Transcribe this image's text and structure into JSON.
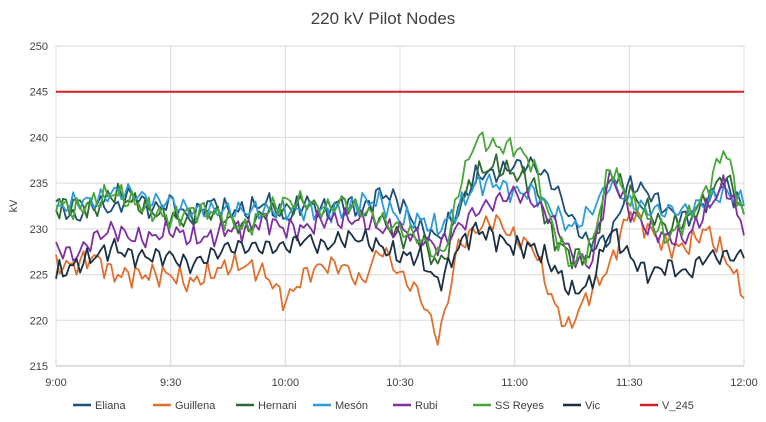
{
  "chart_data": {
    "type": "line",
    "title": "220 kV Pilot Nodes",
    "xlabel": "",
    "ylabel": "kV",
    "x_ticks": [
      "9:00",
      "9:30",
      "10:00",
      "10:30",
      "11:00",
      "11:30",
      "12:00"
    ],
    "xlim_minutes": [
      0,
      180
    ],
    "y_ticks": [
      215,
      220,
      225,
      230,
      235,
      240,
      245,
      250
    ],
    "ylim": [
      215,
      250
    ],
    "grid": true,
    "legend_position": "bottom",
    "series": [
      {
        "name": "Eliana",
        "color": "#1f4e79",
        "points": [
          [
            0,
            233
          ],
          [
            5,
            231
          ],
          [
            10,
            233
          ],
          [
            15,
            232
          ],
          [
            20,
            234
          ],
          [
            25,
            232
          ],
          [
            30,
            233
          ],
          [
            35,
            231
          ],
          [
            40,
            233
          ],
          [
            45,
            232
          ],
          [
            50,
            232
          ],
          [
            55,
            233
          ],
          [
            60,
            231
          ],
          [
            65,
            233
          ],
          [
            70,
            232
          ],
          [
            75,
            233
          ],
          [
            80,
            232
          ],
          [
            85,
            234
          ],
          [
            90,
            233
          ],
          [
            95,
            230
          ],
          [
            100,
            229
          ],
          [
            105,
            232
          ],
          [
            110,
            236
          ],
          [
            115,
            236
          ],
          [
            120,
            237
          ],
          [
            125,
            237
          ],
          [
            130,
            235
          ],
          [
            135,
            231
          ],
          [
            140,
            228
          ],
          [
            145,
            229
          ],
          [
            150,
            235
          ],
          [
            155,
            234
          ],
          [
            160,
            232
          ],
          [
            165,
            231
          ],
          [
            170,
            233
          ],
          [
            175,
            235
          ],
          [
            180,
            232
          ]
        ]
      },
      {
        "name": "Guillena",
        "color": "#e0702f",
        "points": [
          [
            0,
            226
          ],
          [
            5,
            226
          ],
          [
            10,
            227
          ],
          [
            15,
            225
          ],
          [
            20,
            225
          ],
          [
            25,
            225
          ],
          [
            30,
            225
          ],
          [
            35,
            224
          ],
          [
            40,
            225
          ],
          [
            45,
            226
          ],
          [
            50,
            226
          ],
          [
            55,
            225
          ],
          [
            60,
            222
          ],
          [
            65,
            225
          ],
          [
            70,
            226
          ],
          [
            75,
            226
          ],
          [
            80,
            224
          ],
          [
            85,
            228
          ],
          [
            90,
            225
          ],
          [
            95,
            223
          ],
          [
            100,
            218
          ],
          [
            102,
            221
          ],
          [
            105,
            228
          ],
          [
            110,
            230
          ],
          [
            115,
            231
          ],
          [
            120,
            229
          ],
          [
            125,
            228
          ],
          [
            130,
            222
          ],
          [
            134,
            219
          ],
          [
            138,
            222
          ],
          [
            145,
            226
          ],
          [
            150,
            232
          ],
          [
            155,
            230
          ],
          [
            160,
            228
          ],
          [
            165,
            228
          ],
          [
            170,
            230
          ],
          [
            175,
            227
          ],
          [
            180,
            223
          ]
        ]
      },
      {
        "name": "Hernani",
        "color": "#2e6b2e",
        "points": [
          [
            0,
            232
          ],
          [
            5,
            233
          ],
          [
            10,
            232
          ],
          [
            15,
            234
          ],
          [
            20,
            233
          ],
          [
            25,
            232
          ],
          [
            30,
            231
          ],
          [
            35,
            231
          ],
          [
            40,
            232
          ],
          [
            45,
            231
          ],
          [
            50,
            230
          ],
          [
            55,
            232
          ],
          [
            60,
            232
          ],
          [
            65,
            233
          ],
          [
            70,
            232
          ],
          [
            75,
            233
          ],
          [
            80,
            232
          ],
          [
            85,
            231
          ],
          [
            90,
            229
          ],
          [
            95,
            229
          ],
          [
            100,
            226
          ],
          [
            103,
            228
          ],
          [
            105,
            232
          ],
          [
            110,
            236
          ],
          [
            115,
            237
          ],
          [
            120,
            236
          ],
          [
            125,
            235
          ],
          [
            130,
            229
          ],
          [
            135,
            227
          ],
          [
            140,
            227
          ],
          [
            145,
            236
          ],
          [
            150,
            234
          ],
          [
            155,
            232
          ],
          [
            160,
            230
          ],
          [
            165,
            231
          ],
          [
            170,
            233
          ],
          [
            175,
            236
          ],
          [
            180,
            232
          ]
        ]
      },
      {
        "name": "Mesón",
        "color": "#2e9cd9",
        "points": [
          [
            0,
            232
          ],
          [
            5,
            233
          ],
          [
            10,
            233
          ],
          [
            15,
            234
          ],
          [
            20,
            234
          ],
          [
            25,
            233
          ],
          [
            30,
            233
          ],
          [
            35,
            232
          ],
          [
            40,
            232
          ],
          [
            45,
            232
          ],
          [
            50,
            232
          ],
          [
            55,
            232
          ],
          [
            60,
            232
          ],
          [
            65,
            232
          ],
          [
            70,
            232
          ],
          [
            75,
            232
          ],
          [
            80,
            233
          ],
          [
            85,
            233
          ],
          [
            90,
            231
          ],
          [
            95,
            231
          ],
          [
            100,
            230
          ],
          [
            105,
            232
          ],
          [
            110,
            235
          ],
          [
            115,
            235
          ],
          [
            120,
            234
          ],
          [
            125,
            234
          ],
          [
            130,
            232
          ],
          [
            135,
            230
          ],
          [
            140,
            232
          ],
          [
            145,
            235
          ],
          [
            150,
            233
          ],
          [
            155,
            232
          ],
          [
            160,
            232
          ],
          [
            165,
            232
          ],
          [
            170,
            233
          ],
          [
            175,
            234
          ],
          [
            180,
            233
          ]
        ]
      },
      {
        "name": "Rubi",
        "color": "#7f2fa0",
        "points": [
          [
            0,
            228
          ],
          [
            5,
            227
          ],
          [
            10,
            229
          ],
          [
            15,
            230
          ],
          [
            20,
            229
          ],
          [
            25,
            229
          ],
          [
            30,
            230
          ],
          [
            35,
            229
          ],
          [
            40,
            229
          ],
          [
            45,
            230
          ],
          [
            50,
            230
          ],
          [
            55,
            231
          ],
          [
            60,
            230
          ],
          [
            65,
            230
          ],
          [
            70,
            231
          ],
          [
            75,
            231
          ],
          [
            80,
            231
          ],
          [
            85,
            230
          ],
          [
            90,
            230
          ],
          [
            95,
            229
          ],
          [
            100,
            228
          ],
          [
            105,
            230
          ],
          [
            110,
            232
          ],
          [
            115,
            233
          ],
          [
            120,
            234
          ],
          [
            125,
            233
          ],
          [
            130,
            231
          ],
          [
            135,
            227
          ],
          [
            140,
            226
          ],
          [
            145,
            236
          ],
          [
            150,
            232
          ],
          [
            155,
            230
          ],
          [
            160,
            229
          ],
          [
            165,
            229
          ],
          [
            170,
            232
          ],
          [
            175,
            235
          ],
          [
            180,
            230
          ]
        ]
      },
      {
        "name": "SS Reyes",
        "color": "#4aa63a",
        "points": [
          [
            0,
            233
          ],
          [
            5,
            232
          ],
          [
            10,
            233
          ],
          [
            15,
            234
          ],
          [
            20,
            233
          ],
          [
            25,
            232
          ],
          [
            30,
            231
          ],
          [
            35,
            232
          ],
          [
            40,
            232
          ],
          [
            45,
            231
          ],
          [
            50,
            230
          ],
          [
            55,
            232
          ],
          [
            60,
            233
          ],
          [
            65,
            233
          ],
          [
            70,
            232
          ],
          [
            75,
            233
          ],
          [
            80,
            232
          ],
          [
            85,
            231
          ],
          [
            90,
            230
          ],
          [
            95,
            229
          ],
          [
            100,
            227
          ],
          [
            103,
            229
          ],
          [
            105,
            234
          ],
          [
            110,
            240
          ],
          [
            115,
            239
          ],
          [
            120,
            239
          ],
          [
            125,
            237
          ],
          [
            130,
            230
          ],
          [
            135,
            226
          ],
          [
            140,
            228
          ],
          [
            145,
            237
          ],
          [
            150,
            233
          ],
          [
            155,
            231
          ],
          [
            160,
            229
          ],
          [
            165,
            231
          ],
          [
            170,
            234
          ],
          [
            175,
            239
          ],
          [
            180,
            231
          ]
        ]
      },
      {
        "name": "Vic",
        "color": "#1b2f45",
        "points": [
          [
            0,
            225
          ],
          [
            5,
            226
          ],
          [
            10,
            227
          ],
          [
            15,
            228
          ],
          [
            20,
            227
          ],
          [
            25,
            227
          ],
          [
            30,
            227
          ],
          [
            35,
            226
          ],
          [
            40,
            227
          ],
          [
            45,
            228
          ],
          [
            50,
            228
          ],
          [
            55,
            228
          ],
          [
            60,
            228
          ],
          [
            65,
            229
          ],
          [
            70,
            228
          ],
          [
            75,
            229
          ],
          [
            80,
            229
          ],
          [
            85,
            228
          ],
          [
            90,
            227
          ],
          [
            95,
            227
          ],
          [
            100,
            224
          ],
          [
            103,
            226
          ],
          [
            105,
            228
          ],
          [
            110,
            230
          ],
          [
            115,
            229
          ],
          [
            120,
            228
          ],
          [
            125,
            228
          ],
          [
            130,
            226
          ],
          [
            135,
            223
          ],
          [
            140,
            224
          ],
          [
            145,
            230
          ],
          [
            150,
            227
          ],
          [
            155,
            225
          ],
          [
            160,
            226
          ],
          [
            165,
            225
          ],
          [
            170,
            227
          ],
          [
            175,
            227
          ],
          [
            180,
            227
          ]
        ]
      },
      {
        "name": "V_245",
        "color": "#d11f1f",
        "points": [
          [
            0,
            245
          ],
          [
            180,
            245
          ]
        ]
      }
    ]
  }
}
